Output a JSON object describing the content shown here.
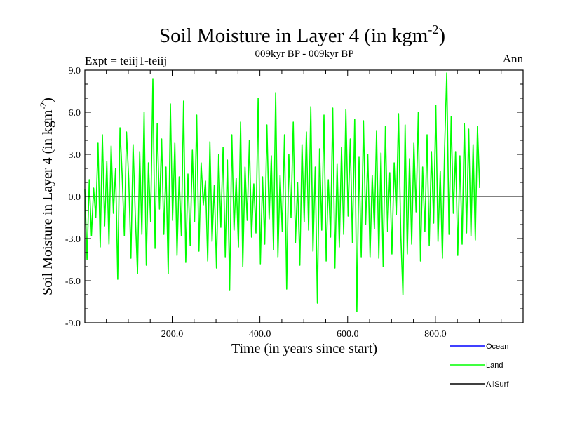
{
  "chart_data": {
    "type": "line",
    "title": "Soil Moisture in Layer 4 (in kgm",
    "title_sup": "-2",
    "title_close": ")",
    "subtitle": "009kyr BP - 009kyr BP",
    "left_label": "Expt = teiij1-teiij",
    "right_label": "Ann",
    "xlabel": "Time (in years since start)",
    "ylabel": "Soil Moisture in Layer 4 (in kgm",
    "ylabel_sup": "-2",
    "ylabel_close": ")",
    "xlim": [
      1,
      1000
    ],
    "ylim": [
      -9.0,
      9.0
    ],
    "xticks": [
      200,
      400,
      600,
      800
    ],
    "xtick_labels": [
      "200.0",
      "400.0",
      "600.0",
      "800.0"
    ],
    "yticks": [
      -9.0,
      -6.0,
      -3.0,
      0.0,
      3.0,
      6.0,
      9.0
    ],
    "ytick_labels": [
      "-9.0",
      "-6.0",
      "-3.0",
      "0.0",
      "3.0",
      "6.0",
      "9.0"
    ],
    "zero_line": true,
    "grid": false,
    "legend_position": "bottom-right",
    "series": [
      {
        "name": "Ocean",
        "color": "#0000ff",
        "values": []
      },
      {
        "name": "Land",
        "color": "#00ff00",
        "x_step": 5,
        "x_start": 1,
        "values": [
          0.5,
          -4.5,
          1.2,
          -2.8,
          0.6,
          -1.5,
          3.8,
          -3.6,
          4.4,
          -2.1,
          2.5,
          -3.4,
          3.6,
          -1.2,
          2.0,
          -5.9,
          4.9,
          1.5,
          -2.8,
          4.6,
          1.2,
          -4.4,
          3.7,
          -1.3,
          -5.5,
          3.2,
          -2.7,
          6.0,
          -4.9,
          2.4,
          -1.8,
          8.4,
          -3.7,
          5.2,
          -0.9,
          4.1,
          -2.7,
          2.1,
          -5.5,
          6.6,
          -1.7,
          3.8,
          -4.2,
          1.4,
          -2.8,
          6.8,
          -4.7,
          1.6,
          -3.5,
          3.3,
          -1.8,
          5.8,
          -3.9,
          2.4,
          -0.6,
          1.1,
          -4.6,
          3.9,
          -3.2,
          0.8,
          -5.1,
          3.0,
          -2.2,
          3.5,
          -4.3,
          2.6,
          -6.7,
          4.4,
          -2.4,
          1.3,
          -3.6,
          5.3,
          -5.0,
          2.1,
          -1.7,
          4.0,
          -2.9,
          0.9,
          -2.6,
          7.0,
          -4.8,
          1.4,
          -3.4,
          5.1,
          -1.6,
          2.9,
          -3.8,
          7.4,
          -4.3,
          1.5,
          -2.5,
          4.4,
          -6.6,
          3.0,
          -1.5,
          5.3,
          -3.3,
          1.0,
          -4.9,
          3.7,
          -1.8,
          4.6,
          -2.4,
          6.4,
          -3.9,
          2.1,
          -7.6,
          3.4,
          -2.4,
          5.8,
          -4.6,
          1.2,
          -2.9,
          6.3,
          -5.1,
          2.3,
          -3.6,
          3.5,
          -2.7,
          6.2,
          -1.4,
          4.1,
          -3.3,
          5.5,
          -8.2,
          2.8,
          -4.3,
          5.4,
          -2.0,
          3.0,
          -4.3,
          1.5,
          -2.3,
          4.7,
          -4.4,
          3.1,
          -5.0,
          5.0,
          -2.5,
          1.7,
          -4.1,
          2.4,
          -1.3,
          5.9,
          -2.7,
          -7.0,
          5.1,
          -4.1,
          2.7,
          -3.4,
          3.8,
          -1.1,
          6.0,
          -4.6,
          2.1,
          -2.5,
          4.4,
          -3.5,
          3.2,
          -1.9,
          6.5,
          -3.2,
          1.8,
          -4.4,
          3.4,
          8.8,
          -2.7,
          5.7,
          -1.2,
          3.2,
          -4.2,
          2.9,
          -3.4,
          5.2,
          -2.6,
          4.8,
          -2.8,
          3.7,
          -3.1,
          5.0,
          0.6
        ]
      },
      {
        "name": "AllSurf",
        "color": "#000000",
        "values": []
      }
    ]
  }
}
